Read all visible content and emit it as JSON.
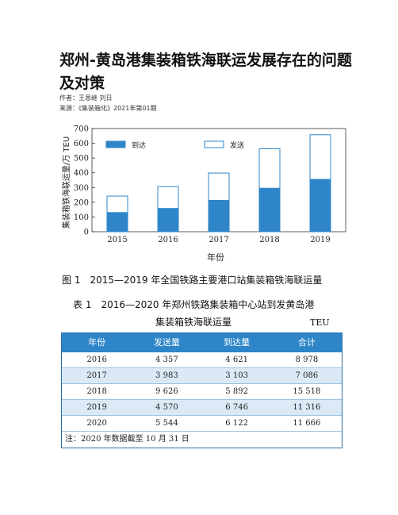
{
  "doc": {
    "title": "郑州-黄岛港集装箱铁海联运发展存在的问题及对策",
    "author": "作者：王恩继 刘日",
    "source": "来源：《集装箱化》2021年第01期"
  },
  "chart_data": {
    "type": "bar",
    "stacked": true,
    "categories": [
      "2015",
      "2016",
      "2017",
      "2018",
      "2019"
    ],
    "series": [
      {
        "name": "到达",
        "values": [
          130,
          158,
          213,
          295,
          355
        ],
        "color": "#2e86c8"
      },
      {
        "name": "发送",
        "values": [
          112,
          148,
          185,
          268,
          303
        ],
        "color": "#ffffff"
      }
    ],
    "xlabel": "年份",
    "ylabel": "集装箱铁海联运量/万 TEU",
    "ylim": [
      0,
      700
    ],
    "yticks": [
      0,
      100,
      200,
      300,
      400,
      500,
      600,
      700
    ],
    "legend_position": "top",
    "grid": false
  },
  "figure": {
    "caption": "图 1　2015—2019 年全国铁路主要港口站集装箱铁海联运量"
  },
  "table": {
    "caption_line1": "表 1　2016—2020 年郑州铁路集装箱中心站到发黄岛港",
    "caption_line2": "集装箱铁海联运量",
    "unit": "TEU",
    "headers": [
      "年份",
      "发送量",
      "到达量",
      "合计"
    ],
    "rows": [
      [
        "2016",
        "4 357",
        "4 621",
        "8 978"
      ],
      [
        "2017",
        "3 983",
        "3 103",
        "7 086"
      ],
      [
        "2018",
        "9 626",
        "5 892",
        "15 518"
      ],
      [
        "2019",
        "4 570",
        "6 746",
        "11 316"
      ],
      [
        "2020",
        "5 544",
        "6 122",
        "11 666"
      ]
    ],
    "note": "注：2020 年数据截至 10 月 31 日"
  }
}
